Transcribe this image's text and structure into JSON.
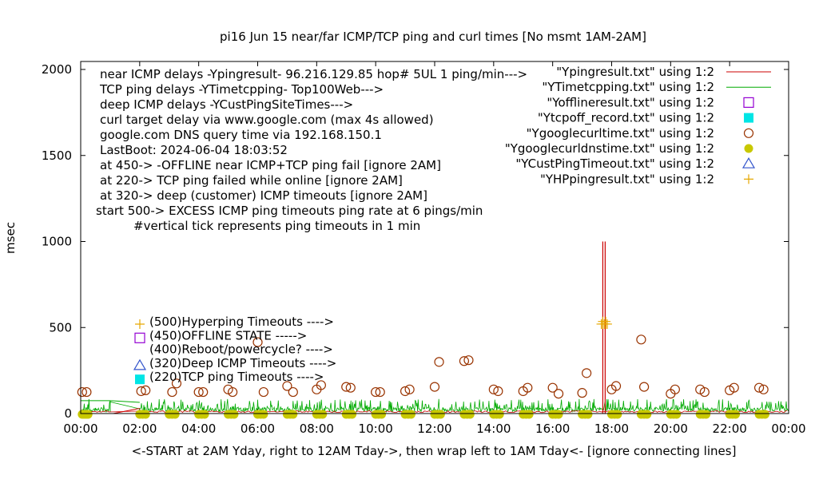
{
  "chart_data": {
    "type": "line",
    "title": "pi16 Jun 15  near/far ICMP/TCP ping and curl times [No msmt 1AM-2AM]",
    "xlabel": "<-START at 2AM Yday, right to 12AM Tday->, then wrap left to 1AM Tday<- [ignore connecting lines]",
    "ylabel": "msec",
    "xlim": [
      0,
      24
    ],
    "ylim": [
      0,
      2000
    ],
    "x_ticks": [
      "00:00",
      "02:00",
      "04:00",
      "06:00",
      "08:00",
      "10:00",
      "12:00",
      "14:00",
      "16:00",
      "18:00",
      "20:00",
      "22:00",
      "00:00"
    ],
    "y_ticks": [
      "0",
      "500",
      "1000",
      "1500",
      "2000"
    ],
    "info_lines": [
      "near ICMP delays -Ypingresult- 96.216.129.85 hop# 5UL 1 ping/min--->",
      "TCP ping delays -YTimetcpping- Top100Web--->",
      "deep ICMP delays -YCustPingSiteTimes--->",
      "curl target delay via www.google.com (max 4s allowed)",
      "google.com DNS query time via 192.168.150.1",
      "LastBoot: 2024-06-04 18:03:52",
      "at 450-> -OFFLINE near ICMP+TCP ping fail [ignore 2AM]",
      "at 220-> TCP ping failed while online [ignore 2AM]",
      "at 320-> deep (customer) ICMP timeouts [ignore 2AM]",
      "start 500-> EXCESS ICMP ping timeouts ping rate at 6 pings/min",
      "#vertical tick represents ping timeouts in 1 min"
    ],
    "legend": [
      {
        "label": "\"Ypingresult.txt\" using 1:2",
        "color": "#cc0000",
        "marker": "line"
      },
      {
        "label": "\"YTimetcpping.txt\" using 1:2",
        "color": "#00aa00",
        "marker": "line"
      },
      {
        "label": "\"Yofflineresult.txt\" using 1:2",
        "color": "#9400d3",
        "marker": "open-square"
      },
      {
        "label": "\"Ytcpoff_record.txt\" using 1:2",
        "color": "#00e5e5",
        "marker": "filled-square"
      },
      {
        "label": "\"Ygooglecurltime.txt\" using 1:2",
        "color": "#993300",
        "marker": "open-circle"
      },
      {
        "label": "\"Ygooglecurldnstime.txt\" using 1:2",
        "color": "#c8c800",
        "marker": "filled-circle"
      },
      {
        "label": "\"YCustPingTimeout.txt\" using 1:2",
        "color": "#3355cc",
        "marker": "open-triangle"
      },
      {
        "label": "\"YHPpingresult.txt\" using 1:2",
        "color": "#e6a800",
        "marker": "plus"
      }
    ],
    "marker_key": [
      {
        "label": "(500)Hyperping Timeouts ---->",
        "color": "#e6a800",
        "marker": "plus"
      },
      {
        "label": "(450)OFFLINE STATE ----->",
        "color": "#9400d3",
        "marker": "open-square"
      },
      {
        "label": "(400)Reboot/powercycle? ---->",
        "color": "#000000",
        "marker": "none"
      },
      {
        "label": "(320)Deep ICMP Timeouts ---->",
        "color": "#3355cc",
        "marker": "open-triangle"
      },
      {
        "label": "(220)TCP ping Timeouts ---->",
        "color": "#00e5e5",
        "marker": "filled-square"
      }
    ],
    "series": [
      {
        "name": "\"Ygooglecurltime.txt\" using 1:2",
        "x": [
          0.05,
          0.2,
          2.05,
          2.2,
          3.1,
          3.25,
          4.0,
          4.15,
          5.0,
          5.15,
          6.0,
          6.2,
          7.0,
          7.2,
          8.0,
          8.15,
          9.0,
          9.15,
          10.0,
          10.15,
          11.0,
          11.15,
          12.0,
          12.15,
          13.0,
          13.15,
          14.0,
          14.15,
          15.0,
          15.15,
          16.0,
          16.2,
          17.0,
          17.15,
          18.0,
          18.15,
          19.0,
          19.1,
          20.0,
          20.15,
          21.0,
          21.15,
          22.0,
          22.15,
          23.0,
          23.15
        ],
        "y": [
          125,
          125,
          130,
          135,
          125,
          175,
          125,
          125,
          140,
          125,
          415,
          125,
          160,
          125,
          140,
          165,
          155,
          150,
          125,
          125,
          130,
          140,
          155,
          300,
          305,
          310,
          140,
          130,
          130,
          150,
          150,
          115,
          120,
          235,
          140,
          160,
          430,
          155,
          115,
          140,
          140,
          125,
          135,
          150,
          150,
          140
        ]
      },
      {
        "name": "\"YHPpingresult.txt\" using 1:2",
        "x": [
          17.65,
          17.7,
          17.75,
          17.8,
          17.85,
          17.7,
          17.8
        ],
        "y": [
          520,
          520,
          520,
          520,
          520,
          535,
          535
        ]
      },
      {
        "name": "\"Ygooglecurldnstime.txt\" using 1:2",
        "x": [
          0.05,
          0.1,
          0.15,
          0.2,
          0.25,
          2.0,
          2.1,
          2.2,
          3.0,
          3.1,
          3.2,
          4.0,
          4.1,
          4.2,
          5.0,
          5.1,
          5.2,
          6.0,
          6.1,
          6.2,
          7.0,
          7.1,
          7.2,
          8.0,
          8.1,
          8.2,
          9.0,
          9.1,
          9.2,
          10.0,
          10.1,
          10.2,
          11.0,
          11.1,
          11.2,
          12.0,
          12.1,
          12.2,
          13.0,
          13.1,
          13.2,
          14.0,
          14.1,
          14.2,
          15.0,
          15.1,
          15.2,
          16.0,
          16.1,
          16.2,
          17.0,
          17.1,
          17.2,
          18.0,
          18.1,
          18.2,
          19.0,
          19.1,
          19.2,
          20.0,
          20.1,
          20.2,
          21.0,
          21.1,
          21.2,
          22.0,
          22.1,
          22.2,
          23.0,
          23.1,
          23.2
        ],
        "y": [
          0,
          0,
          0,
          0,
          0,
          0,
          0,
          0,
          0,
          0,
          0,
          0,
          0,
          0,
          0,
          0,
          0,
          0,
          0,
          0,
          0,
          0,
          0,
          0,
          0,
          0,
          0,
          0,
          0,
          0,
          0,
          0,
          0,
          0,
          0,
          0,
          0,
          0,
          0,
          0,
          0,
          0,
          0,
          0,
          0,
          0,
          0,
          0,
          0,
          0,
          0,
          0,
          0,
          0,
          0,
          0,
          0,
          0,
          0,
          0,
          0,
          0,
          0,
          0,
          0,
          0,
          0,
          0,
          0,
          0,
          0
        ]
      },
      {
        "name": "\"Ypingresult.txt\" spikes",
        "x": [
          17.7,
          17.78
        ],
        "y": [
          1000,
          1000
        ]
      }
    ],
    "grid": false,
    "legend_position": "top-right"
  }
}
